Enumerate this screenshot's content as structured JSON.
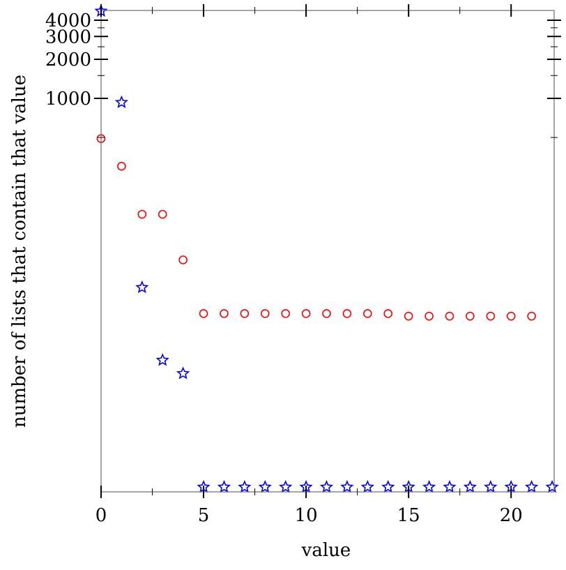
{
  "chart_data": {
    "type": "scatter",
    "title": "",
    "xlabel": "value",
    "ylabel": "number of lists that contain that value",
    "xlim": [
      0,
      22.1
    ],
    "ylim": [
      0.93,
      4760
    ],
    "yscale": "log",
    "grid": false,
    "x_ticks": [
      "0",
      "5",
      "10",
      "15",
      "20"
    ],
    "y_ticks": [
      "1000",
      "2000",
      "3000",
      "4000"
    ],
    "series": [
      {
        "marker": "circle",
        "color": "#ff0000",
        "x": [
          0,
          1,
          2,
          3,
          4,
          5,
          6,
          7,
          8,
          9,
          10,
          11,
          12,
          13,
          14,
          15,
          16,
          17,
          18,
          19,
          20,
          21
        ],
        "y": [
          490,
          300,
          128,
          128,
          57,
          22,
          22,
          22,
          22,
          22,
          22,
          22,
          22,
          22,
          22,
          21,
          21,
          21,
          21,
          21,
          21,
          21
        ]
      },
      {
        "marker": "star",
        "color": "#0000ff",
        "x": [
          0,
          1,
          2,
          3,
          4,
          5,
          6,
          7,
          8,
          9,
          10,
          11,
          12,
          13,
          14,
          15,
          16,
          17,
          18,
          19,
          20,
          21,
          22
        ],
        "y": [
          4650,
          920,
          34.5,
          9.5,
          7.5,
          1,
          1,
          1,
          1,
          1,
          1,
          1,
          1,
          1,
          1,
          1,
          1,
          1,
          1,
          1,
          1,
          1,
          1
        ]
      }
    ]
  }
}
